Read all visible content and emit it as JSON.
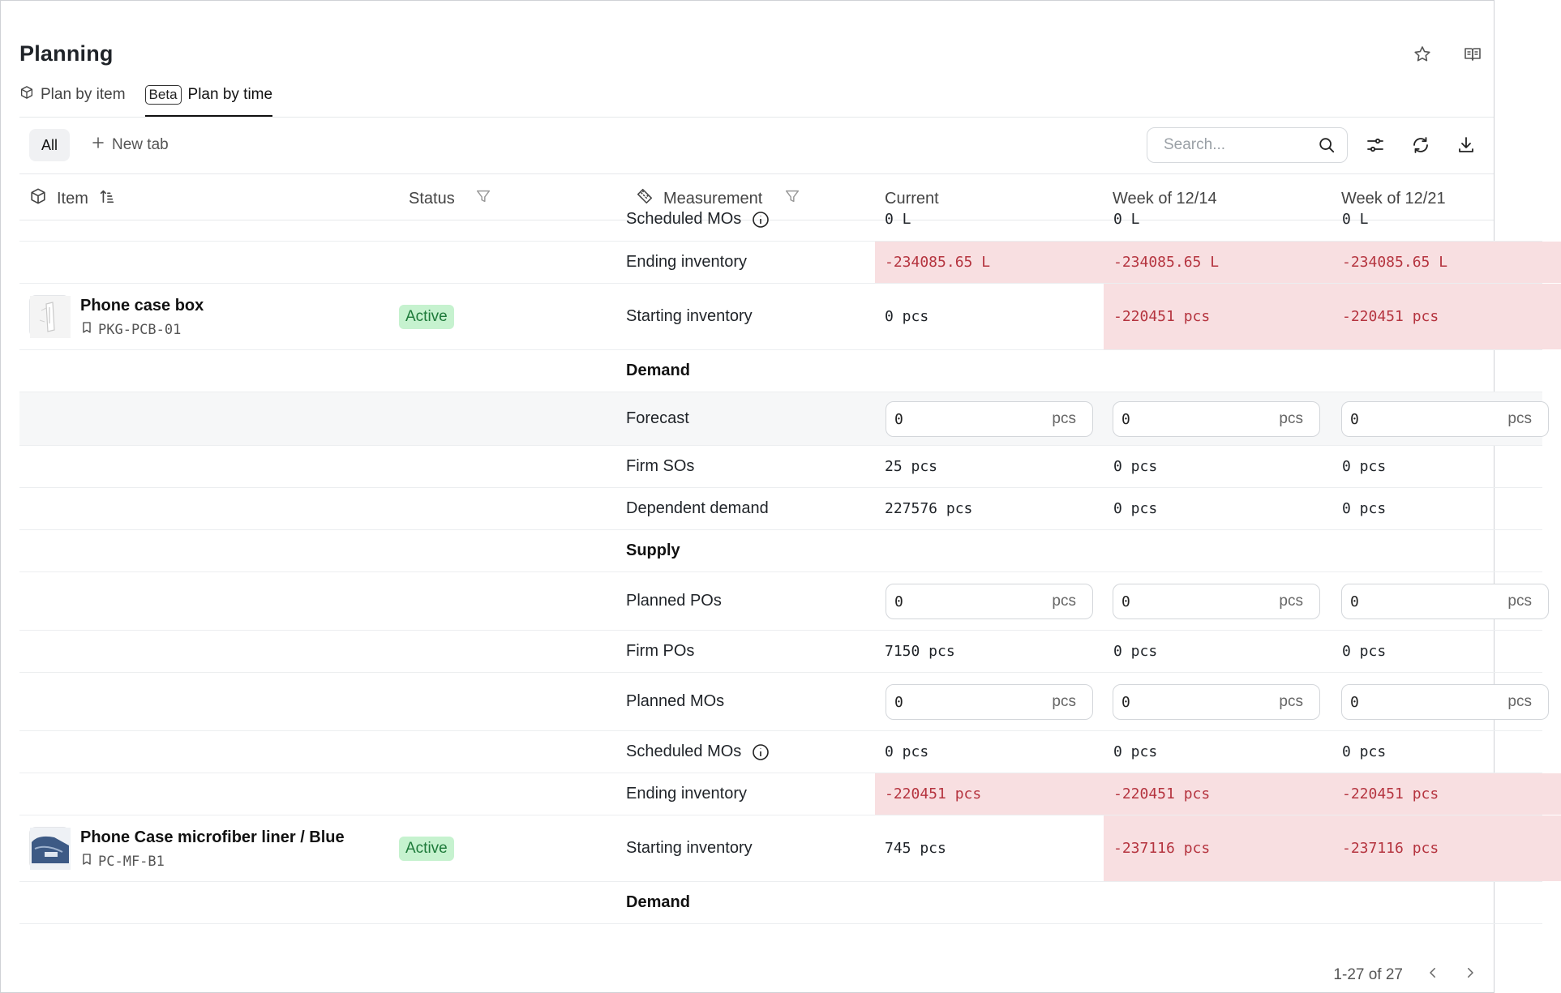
{
  "page": {
    "title": "Planning",
    "top_icons": [
      "star-icon",
      "book-icon"
    ]
  },
  "view_tabs": {
    "plan_by_item": "Plan by item",
    "beta_badge": "Beta",
    "plan_by_time": "Plan by time"
  },
  "toolbar": {
    "all_label": "All",
    "new_tab_label": "New tab",
    "search_placeholder": "Search..."
  },
  "columns": {
    "item": "Item",
    "status": "Status",
    "measurement": "Measurement",
    "current": "Current",
    "week1": "Week of 12/14",
    "week2": "Week of 12/21"
  },
  "partial_row": {
    "measurement": "Scheduled MOs",
    "current": "0 L",
    "week1": "0 L",
    "week2": "0 L"
  },
  "ending_row_top": {
    "measurement": "Ending inventory",
    "current": "-234085.65 L",
    "week1": "-234085.65 L",
    "week2": "-234085.65 L"
  },
  "item1": {
    "name": "Phone case box",
    "sku": "PKG-PCB-01",
    "status": "Active",
    "starting": {
      "measurement": "Starting inventory",
      "current": "0 pcs",
      "week1": "-220451 pcs",
      "week2": "-220451 pcs"
    },
    "demand_label": "Demand",
    "forecast": {
      "measurement": "Forecast",
      "current": "0",
      "week1": "0",
      "week2": "0",
      "unit": "pcs"
    },
    "firm_sos": {
      "measurement": "Firm SOs",
      "current": "25 pcs",
      "week1": "0 pcs",
      "week2": "0 pcs"
    },
    "dependent_demand": {
      "measurement": "Dependent demand",
      "current": "227576 pcs",
      "week1": "0 pcs",
      "week2": "0 pcs"
    },
    "supply_label": "Supply",
    "planned_pos": {
      "measurement": "Planned POs",
      "current": "0",
      "week1": "0",
      "week2": "0",
      "unit": "pcs"
    },
    "firm_pos": {
      "measurement": "Firm POs",
      "current": "7150 pcs",
      "week1": "0 pcs",
      "week2": "0 pcs"
    },
    "planned_mos": {
      "measurement": "Planned MOs",
      "current": "0",
      "week1": "0",
      "week2": "0",
      "unit": "pcs"
    },
    "scheduled_mos": {
      "measurement": "Scheduled MOs",
      "current": "0 pcs",
      "week1": "0 pcs",
      "week2": "0 pcs"
    },
    "ending": {
      "measurement": "Ending inventory",
      "current": "-220451 pcs",
      "week1": "-220451 pcs",
      "week2": "-220451 pcs"
    }
  },
  "item2": {
    "name": "Phone Case microfiber liner / Blue",
    "sku": "PC-MF-B1",
    "status": "Active",
    "starting": {
      "measurement": "Starting inventory",
      "current": "745 pcs",
      "week1": "-237116 pcs",
      "week2": "-237116 pcs"
    },
    "demand_label": "Demand"
  },
  "pagination": {
    "range": "1-27 of 27"
  },
  "colors": {
    "negative_bg": "#f8dfe1",
    "negative_text": "#b5343f",
    "active_badge_bg": "#c6f2cf",
    "active_badge_text": "#1e7a3a"
  }
}
